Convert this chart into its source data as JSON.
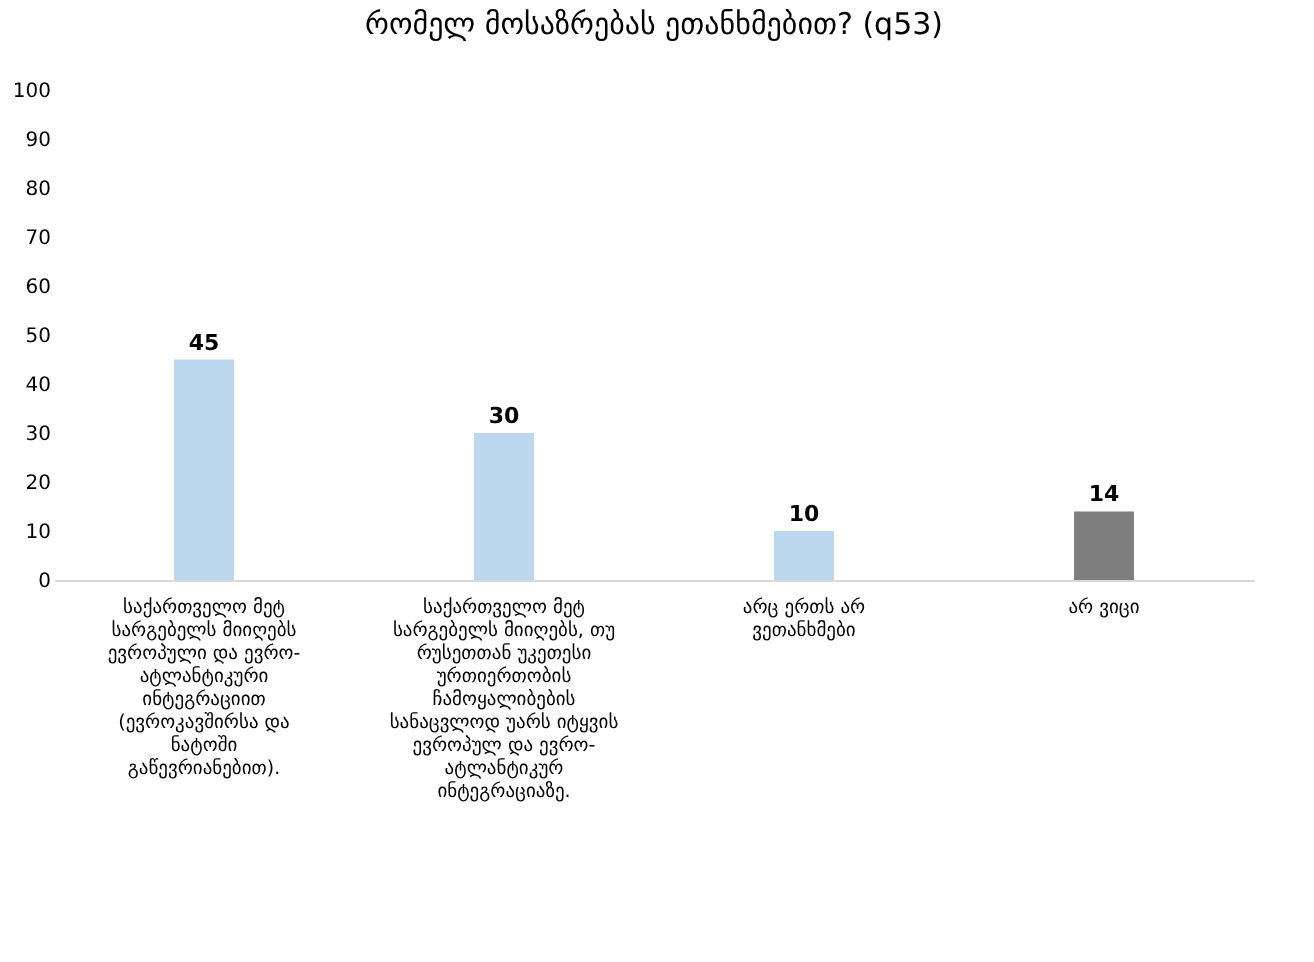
{
  "chart_data": {
    "type": "bar",
    "title": "რომელ მოსაზრებას ეთანხმებით? (q53)",
    "categories": [
      "საქართველო მეტ სარგებელს მიიღებს ევროპული და ევრო-ატლანტიკური ინტეგრაციით (ევროკავშირსა და ნატოში გაწევრიანებით).",
      "საქართველო მეტ სარგებელს მიიღებს, თუ რუსეთთან უკეთესი ურთიერთობის ჩამოყალიბების სანაცვლოდ უარს იტყვის ევროპულ და ევრო-ატლანტიკურ ინტეგრაციაზე.",
      "არც ერთს არ ვეთანხმები",
      "არ ვიცი"
    ],
    "values": [
      45,
      30,
      10,
      14
    ],
    "colors": [
      "#bdd7ee",
      "#bdd7ee",
      "#bdd7ee",
      "#7f7f7f"
    ],
    "ylim": [
      0,
      100
    ],
    "yticks": [
      0,
      10,
      20,
      30,
      40,
      50,
      60,
      70,
      80,
      90,
      100
    ],
    "grid": false,
    "data_labels": true
  }
}
